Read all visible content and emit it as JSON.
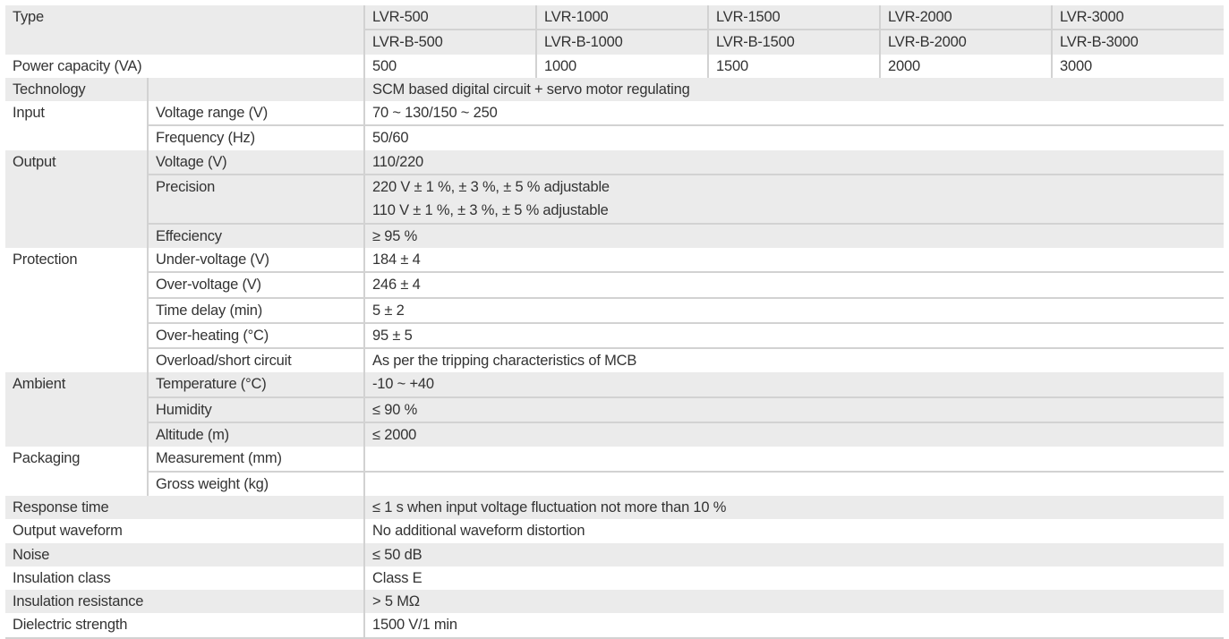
{
  "header": {
    "type_label": "Type",
    "types_a": [
      "LVR-500",
      "LVR-1000",
      "LVR-1500",
      "LVR-2000",
      "LVR-3000"
    ],
    "types_b": [
      "LVR-B-500",
      "LVR-B-1000",
      "LVR-B-1500",
      "LVR-B-2000",
      "LVR-B-3000"
    ],
    "capacity_label": "Power capacity (VA)",
    "capacities": [
      "500",
      "1000",
      "1500",
      "2000",
      "3000"
    ]
  },
  "groups": [
    {
      "label": "Technology",
      "shaded": true,
      "rows": [
        {
          "label": "",
          "value": "SCM based digital circuit + servo motor regulating"
        }
      ]
    },
    {
      "label": "Input",
      "shaded": false,
      "rows": [
        {
          "label": "Voltage range (V)",
          "value": "70 ~ 130/150 ~ 250"
        },
        {
          "label": "Frequency (Hz)",
          "value": "50/60"
        }
      ]
    },
    {
      "label": "Output",
      "shaded": true,
      "rows": [
        {
          "label": "Voltage (V)",
          "value": "110/220"
        },
        {
          "label": "Precision",
          "value": [
            "220 V ± 1 %, ± 3 %, ± 5 % adjustable",
            "110 V ± 1 %, ± 3 %, ± 5 % adjustable"
          ]
        },
        {
          "label": "Effeciency",
          "value": "≥ 95 %"
        }
      ]
    },
    {
      "label": "Protection",
      "shaded": false,
      "rows": [
        {
          "label": "Under-voltage (V)",
          "value": "184 ± 4"
        },
        {
          "label": "Over-voltage (V)",
          "value": "246 ± 4"
        },
        {
          "label": "Time delay (min)",
          "value": "5 ± 2"
        },
        {
          "label": "Over-heating (°C)",
          "value": "95 ± 5"
        },
        {
          "label": "Overload/short circuit",
          "value": "As per the tripping characteristics of MCB"
        }
      ]
    },
    {
      "label": "Ambient",
      "shaded": true,
      "rows": [
        {
          "label": "Temperature (°C)",
          "value": "-10 ~ +40"
        },
        {
          "label": "Humidity",
          "value": "≤ 90 %"
        },
        {
          "label": "Altitude (m)",
          "value": "≤ 2000"
        }
      ]
    },
    {
      "label": "Packaging",
      "shaded": false,
      "rows": [
        {
          "label": "Measurement (mm)",
          "value": ""
        },
        {
          "label": "Gross weight (kg)",
          "value": ""
        }
      ]
    }
  ],
  "simple_rows": [
    {
      "label": "Response time",
      "value": "≤ 1 s when input voltage fluctuation not more than 10 %"
    },
    {
      "label": "Output waveform",
      "value": "No additional waveform distortion"
    },
    {
      "label": "Noise",
      "value": "≤ 50 dB"
    },
    {
      "label": "Insulation class",
      "value": "Class E"
    },
    {
      "label": "Insulation resistance",
      "value": "> 5 MΩ"
    },
    {
      "label": "Dielectric strength",
      "value": "1500 V/1 min"
    }
  ],
  "colors": {
    "shade": "#ebebeb",
    "rule": "#d2d2d2",
    "text": "#333333"
  }
}
